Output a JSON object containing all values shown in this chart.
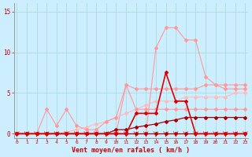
{
  "x": [
    0,
    1,
    2,
    3,
    4,
    5,
    6,
    7,
    8,
    9,
    10,
    11,
    12,
    13,
    14,
    15,
    16,
    17,
    18,
    19,
    20,
    21,
    22,
    23
  ],
  "pink_high": [
    0,
    0,
    0,
    0,
    0,
    0,
    0,
    0,
    0,
    0,
    0,
    0,
    0,
    0,
    10.5,
    13.0,
    13.0,
    11.5,
    11.5,
    7.0,
    6.0,
    5.5,
    5.5,
    5.5
  ],
  "pink_mid_rise": [
    0,
    0,
    0,
    0,
    0,
    0,
    0,
    0,
    0,
    0,
    0,
    6.0,
    5.5,
    5.5,
    5.5,
    5.5,
    5.5,
    5.5,
    5.5,
    6.0,
    6.0,
    6.0,
    6.0,
    6.0
  ],
  "pink_low_rise": [
    0,
    0,
    0,
    0,
    0,
    0.2,
    0.5,
    0.8,
    1.2,
    1.5,
    2.0,
    2.5,
    3.0,
    3.5,
    4.0,
    4.0,
    4.0,
    4.5,
    4.5,
    4.5,
    4.5,
    4.5,
    5.0,
    5.0
  ],
  "pink_jagged": [
    0,
    0,
    0,
    3.0,
    1.0,
    3.0,
    1.0,
    0.5,
    0.5,
    1.5,
    2.0,
    6.0,
    3.0,
    3.0,
    3.0,
    3.0,
    3.0,
    3.0,
    3.0,
    3.0,
    3.0,
    3.0,
    3.0,
    3.0
  ],
  "red_spike": [
    0,
    0,
    0,
    0,
    0,
    0,
    0,
    0,
    0,
    0,
    0,
    0,
    2.5,
    2.5,
    2.5,
    7.5,
    4.0,
    4.0,
    0,
    0,
    0,
    0,
    0,
    0
  ],
  "dark_red_flat": [
    0,
    0,
    0,
    0,
    0,
    0,
    0,
    0,
    0,
    0,
    0,
    0,
    0,
    0,
    0,
    0,
    0,
    0,
    0,
    0,
    0,
    0,
    0,
    0
  ],
  "dark_red_rise": [
    0,
    0,
    0,
    0,
    0,
    0,
    0,
    0,
    0,
    0,
    0.5,
    0.5,
    0.8,
    1.0,
    1.2,
    1.5,
    1.7,
    2.0,
    2.0,
    2.0,
    2.0,
    2.0,
    2.0,
    2.0
  ],
  "bg_color": "#cceeff",
  "grid_color": "#aadddd",
  "xlabel": "Vent moyen/en rafales ( km/h )",
  "xlim": [
    0,
    23
  ],
  "ylim": [
    0,
    15
  ],
  "yticks": [
    0,
    5,
    10,
    15
  ],
  "xticks": [
    0,
    1,
    2,
    3,
    4,
    5,
    6,
    7,
    8,
    9,
    10,
    11,
    12,
    13,
    14,
    15,
    16,
    17,
    18,
    19,
    20,
    21,
    22,
    23
  ]
}
